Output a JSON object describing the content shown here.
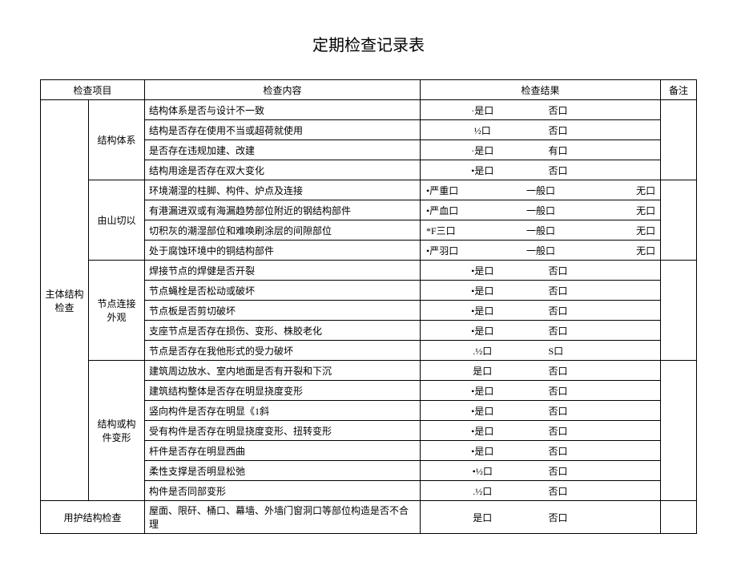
{
  "title": "定期检查记录表",
  "headers": {
    "item": "检查项目",
    "content": "检查内容",
    "result": "检查结果",
    "note": "备注"
  },
  "cat_main": "主体结构检查",
  "cat_enclosure": "用护结构检查",
  "sub_system": "结构体系",
  "sub_by_shan": "由山切以",
  "sub_joint": "节点连接外观",
  "sub_deform": "结构或构件变形",
  "rows": {
    "r1": {
      "c": "结构体系是否与设计不一致",
      "o1": "·是口",
      "o2": "否口"
    },
    "r2": {
      "c": "结构是否存在使用不当或超荷就使用",
      "o1": "½口",
      "o2": "否口"
    },
    "r3": {
      "c": "是否存在违规加建、改建",
      "o1": "·是口",
      "o2": "有口"
    },
    "r4": {
      "c": "结构用途是否存在双大变化",
      "o1": "•是口",
      "o2": "否口"
    },
    "r5": {
      "c": "环境潮湿的柱脚、构件、炉点及连接",
      "o1": "•严重口",
      "o2": "一般口",
      "o3": "无口"
    },
    "r6": {
      "c": "有港漏进双或有海漏趋势部位附近的钢结构部件",
      "o1": "•严血口",
      "o2": "一般口",
      "o3": "无口"
    },
    "r7": {
      "c": "切积灰的潮湿部位和难唤刷涂层的间隙部位",
      "o1": "*F三口",
      "o2": "一般口",
      "o3": "无口"
    },
    "r8": {
      "c": "处于腐蚀环境中的铜结构部件",
      "o1": "•严羽口",
      "o2": "一般口",
      "o3": "无口"
    },
    "r9": {
      "c": "焊接节点的焊健是否开裂",
      "o1": "•是口",
      "o2": "否口"
    },
    "r10": {
      "c": "节点蝇栓是否松动或破坏",
      "o1": "•是口",
      "o2": "否口"
    },
    "r11": {
      "c": "节点板是否剪切破坏",
      "o1": "•是口",
      "o2": "否口"
    },
    "r12": {
      "c": "支座节点是否存在损伤、变形、株胶老化",
      "o1": "•是口",
      "o2": "否口"
    },
    "r13": {
      "c": "节点是否存在我他形式的受力破坏",
      "o1": ".½口",
      "o2": "S口"
    },
    "r14": {
      "c": "建筑周边放水、室内地面是否有开裂和下沉",
      "o1": "是口",
      "o2": "否口"
    },
    "r15": {
      "c": "建筑结构整体是否存在明显挠度变形",
      "o1": "•是口",
      "o2": "否口"
    },
    "r16": {
      "c": "竖向构件是否存在明显《1斜",
      "o1": "•是口",
      "o2": "否口"
    },
    "r17": {
      "c": "受有构件是否存在明显挠度变形、扭转变形",
      "o1": "•是口",
      "o2": "否口"
    },
    "r18": {
      "c": "杆件是否存在明显西曲",
      "o1": "•是口",
      "o2": "否口"
    },
    "r19": {
      "c": "柔性支撑是否明显松弛",
      "o1": "•½口",
      "o2": "否口"
    },
    "r20": {
      "c": "构件是否同部变形",
      "o1": ".½口",
      "o2": "否口"
    },
    "r21": {
      "c": "屋面、限矸、桶口、幕墙、外墙门窗洞口等部位构造是否不合理",
      "o1": "是口",
      "o2": "否口"
    }
  }
}
